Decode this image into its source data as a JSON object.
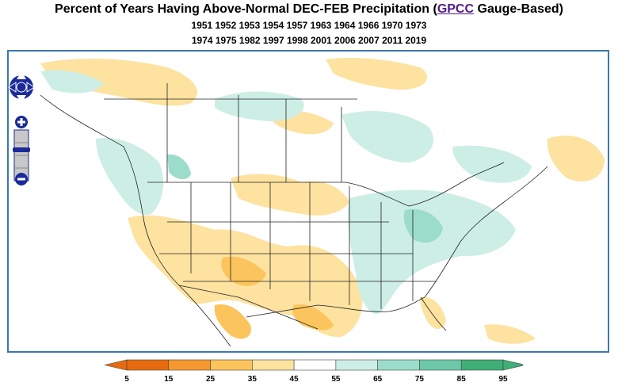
{
  "header": {
    "title_before": "Percent of Years Having Above-Normal DEC-FEB Precipitation (",
    "title_link": "GPCC",
    "title_after": " Gauge-Based)",
    "years_line1": "1951 1952 1953 1954 1957 1963 1964 1966 1970 1973",
    "years_line2": "1974 1975 1982 1997 1998 2001 2006 2007 2011 2019"
  },
  "map_controls": {
    "pan_icon": "pan-arrows-icon",
    "zoom_in_label": "+",
    "zoom_out_label": "−",
    "zoom_levels": 4
  },
  "legend": {
    "ticks": [
      "5",
      "15",
      "25",
      "35",
      "45",
      "55",
      "65",
      "75",
      "85",
      "95"
    ],
    "colors": [
      "#e66b0f",
      "#f5992e",
      "#fbc45c",
      "#fde2a0",
      "#ffffff",
      "#cdeee5",
      "#9cdcca",
      "#6cc8a8",
      "#3fae77"
    ]
  }
}
